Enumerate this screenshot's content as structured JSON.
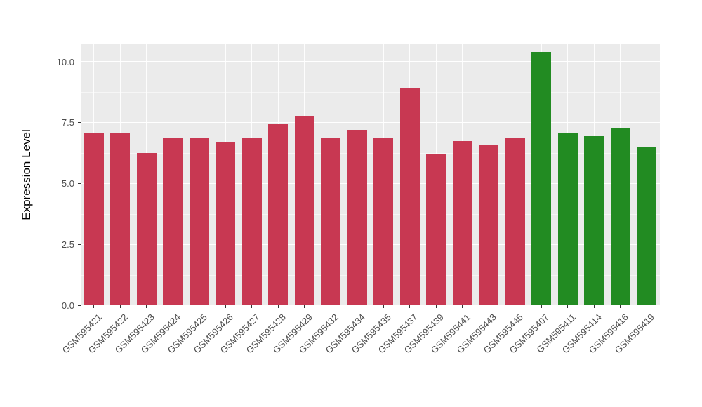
{
  "chart_data": {
    "type": "bar",
    "title": "",
    "xlabel": "",
    "ylabel": "Expression Level",
    "ylim": [
      0,
      10.75
    ],
    "yticks": [
      0,
      2.5,
      5,
      7.5,
      10
    ],
    "ytick_labels": [
      "0.0",
      "2.5",
      "5.0",
      "7.5",
      "10.0"
    ],
    "minor_ticks": [
      1.25,
      3.75,
      6.25,
      8.75
    ],
    "grid": true,
    "legend_position": "none",
    "panel_background": "#EBEBEB",
    "gridline_color": "#FFFFFF",
    "axis_text_color": "#4D4D4D",
    "colors": {
      "group1": "#C83852",
      "group2": "#228B22"
    },
    "categories": [
      "GSM595421",
      "GSM595422",
      "GSM595423",
      "GSM595424",
      "GSM595425",
      "GSM595426",
      "GSM595427",
      "GSM595428",
      "GSM595429",
      "GSM595432",
      "GSM595434",
      "GSM595435",
      "GSM595437",
      "GSM595439",
      "GSM595441",
      "GSM595443",
      "GSM595445",
      "GSM595407",
      "GSM595411",
      "GSM595414",
      "GSM595416",
      "GSM595419"
    ],
    "values": [
      7.1,
      7.1,
      6.25,
      6.9,
      6.85,
      6.7,
      6.9,
      7.45,
      7.75,
      6.85,
      7.2,
      6.85,
      8.9,
      6.2,
      6.75,
      6.6,
      6.85,
      10.4,
      7.1,
      6.95,
      7.3,
      6.5
    ],
    "groups": [
      "group1",
      "group1",
      "group1",
      "group1",
      "group1",
      "group1",
      "group1",
      "group1",
      "group1",
      "group1",
      "group1",
      "group1",
      "group1",
      "group1",
      "group1",
      "group1",
      "group1",
      "group2",
      "group2",
      "group2",
      "group2",
      "group2"
    ]
  }
}
